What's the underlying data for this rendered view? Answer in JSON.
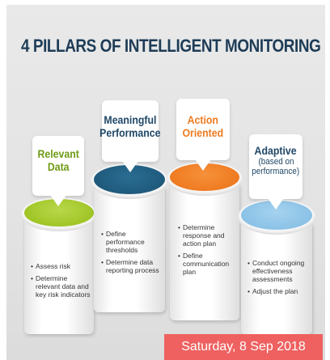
{
  "title": "4 PILLARS OF INTELLIGENT MONITORING",
  "pillars": [
    {
      "title_lines": [
        "Relevant",
        "Data"
      ],
      "subtitle_lines": [],
      "title_color": "#6f9a14",
      "disc_color": "#a8cc2e",
      "bullets": [
        "Assess risk",
        "Determine relevant data and key risk indicators"
      ]
    },
    {
      "title_lines": [
        "Meaningful",
        "Performance"
      ],
      "subtitle_lines": [],
      "title_color": "#1f4767",
      "disc_color": "#1e5a7d",
      "bullets": [
        "Define performance thresholds",
        "Determine data reporting process"
      ]
    },
    {
      "title_lines": [
        "Action",
        "Oriented"
      ],
      "subtitle_lines": [],
      "title_color": "#ee7a1f",
      "disc_color": "#f07e23",
      "bullets": [
        "Determine response and action plan",
        "Define communication plan"
      ]
    },
    {
      "title_lines": [
        "Adaptive"
      ],
      "subtitle_lines": [
        "(based on",
        "performance)"
      ],
      "title_color": "#1f4767",
      "disc_color": "#8fc5e8",
      "bullets": [
        "Conduct ongoing effectiveness assessments",
        "Adjust the plan"
      ]
    }
  ],
  "date_badge": "Saturday, 8 Sep 2018"
}
